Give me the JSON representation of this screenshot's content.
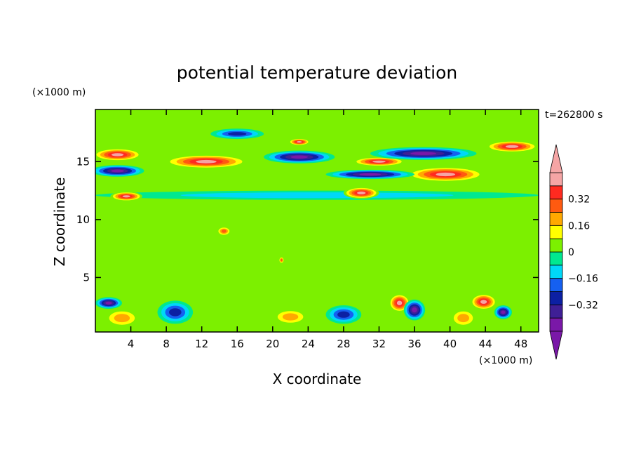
{
  "chart_data": {
    "type": "heatmap",
    "title": "potential temperature deviation",
    "xlabel": "X coordinate",
    "ylabel": "Z coordinate",
    "x_unit": "(×1000 m)",
    "y_unit": "(×1000 m)",
    "time_label": "t=262800 s",
    "xlim": [
      0,
      50
    ],
    "ylim": [
      0.3,
      19.5
    ],
    "x_ticks": [
      4,
      8,
      12,
      16,
      20,
      24,
      28,
      32,
      36,
      40,
      44,
      48
    ],
    "y_ticks": [
      5,
      10,
      15
    ],
    "colorbar": {
      "levels": [
        -0.48,
        -0.4,
        -0.32,
        -0.24,
        -0.16,
        -0.08,
        0,
        0.08,
        0.16,
        0.24,
        0.32,
        0.4,
        0.48
      ],
      "tick_values": [
        0.32,
        0.16,
        0,
        -0.16,
        -0.32
      ],
      "tick_labels": [
        "0.32",
        "0.16",
        "0",
        "−0.16",
        "−0.32"
      ],
      "colors": [
        "#7a18a8",
        "#3f1f96",
        "#0c20a3",
        "#1560f0",
        "#00d8f8",
        "#00e890",
        "#7cf000",
        "#ffff00",
        "#ffa800",
        "#ff5a10",
        "#ff2a20",
        "#f5a5a5"
      ],
      "extend": "both"
    },
    "features": [
      {
        "value": 0.45,
        "x": 2.5,
        "z": 15.6,
        "rx": 2.8,
        "rz": 0.55
      },
      {
        "value": 0.45,
        "x": 12.5,
        "z": 15.0,
        "rx": 4.8,
        "rz": 0.6
      },
      {
        "value": 0.45,
        "x": 3.5,
        "z": 12.0,
        "rx": 1.8,
        "rz": 0.4
      },
      {
        "value": 0.45,
        "x": 23.0,
        "z": 16.7,
        "rx": 1.2,
        "rz": 0.3
      },
      {
        "value": 0.45,
        "x": 32.0,
        "z": 15.0,
        "rx": 3.0,
        "rz": 0.4
      },
      {
        "value": 0.45,
        "x": 30.0,
        "z": 12.3,
        "rx": 2.0,
        "rz": 0.5
      },
      {
        "value": 0.45,
        "x": 39.5,
        "z": 13.9,
        "rx": 4.5,
        "rz": 0.65
      },
      {
        "value": 0.45,
        "x": 47.0,
        "z": 16.3,
        "rx": 3.0,
        "rz": 0.5
      },
      {
        "value": 0.45,
        "x": 34.3,
        "z": 2.8,
        "rx": 1.2,
        "rz": 0.8
      },
      {
        "value": 0.45,
        "x": 43.8,
        "z": 2.9,
        "rx": 1.5,
        "rz": 0.7
      },
      {
        "value": -0.45,
        "x": 2.5,
        "z": 14.2,
        "rx": 3.0,
        "rz": 0.5
      },
      {
        "value": -0.45,
        "x": 23.0,
        "z": 15.4,
        "rx": 4.0,
        "rz": 0.55
      },
      {
        "value": -0.45,
        "x": 37.0,
        "z": 15.7,
        "rx": 6.0,
        "rz": 0.55
      },
      {
        "value": -0.45,
        "x": 31.0,
        "z": 13.9,
        "rx": 5.0,
        "rz": 0.4
      },
      {
        "value": -0.45,
        "x": 36.0,
        "z": 2.2,
        "rx": 1.2,
        "rz": 0.9
      },
      {
        "value": -0.45,
        "x": 46.0,
        "z": 2.0,
        "rx": 1.0,
        "rz": 0.6
      },
      {
        "value": -0.45,
        "x": 1.5,
        "z": 2.8,
        "rx": 1.5,
        "rz": 0.5
      },
      {
        "value": -0.3,
        "x": 9.0,
        "z": 2.0,
        "rx": 2.0,
        "rz": 1.0
      },
      {
        "value": -0.3,
        "x": 16.0,
        "z": 17.4,
        "rx": 3.0,
        "rz": 0.45
      },
      {
        "value": -0.3,
        "x": 28.0,
        "z": 1.8,
        "rx": 2.0,
        "rz": 0.8
      },
      {
        "value": -0.12,
        "x": 25.0,
        "z": 12.1,
        "rx": 25.0,
        "rz": 0.4
      },
      {
        "value": 0.2,
        "x": 3.0,
        "z": 1.5,
        "rx": 2.0,
        "rz": 0.8
      },
      {
        "value": 0.2,
        "x": 22.0,
        "z": 1.6,
        "rx": 2.0,
        "rz": 0.7
      },
      {
        "value": 0.2,
        "x": 41.5,
        "z": 1.5,
        "rx": 1.5,
        "rz": 0.8
      },
      {
        "value": 0.3,
        "x": 14.5,
        "z": 9.0,
        "rx": 0.8,
        "rz": 0.4
      },
      {
        "value": 0.3,
        "x": 21.0,
        "z": 6.5,
        "rx": 0.3,
        "rz": 0.3
      },
      {
        "value": 0.08,
        "x": 25.0,
        "z": 7.5,
        "rx": 25.0,
        "rz": 3.0
      }
    ]
  }
}
